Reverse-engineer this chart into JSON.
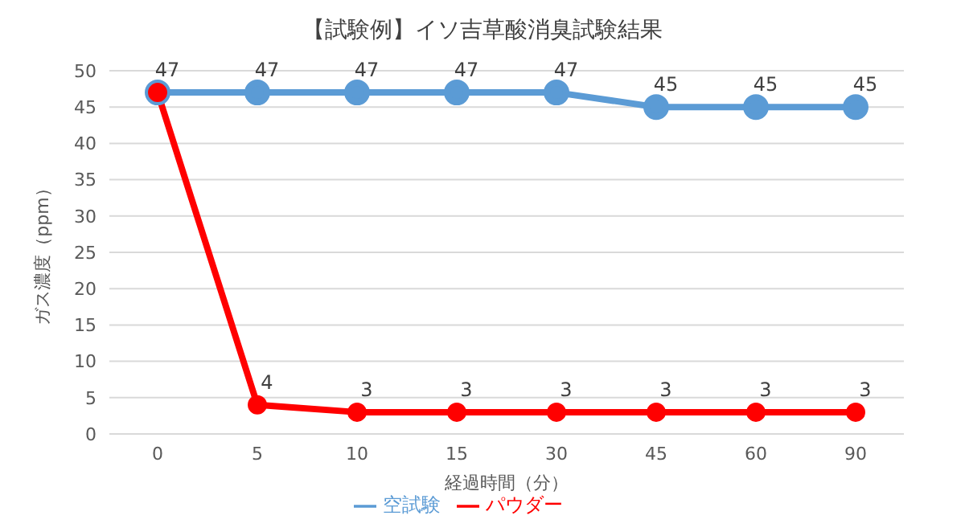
{
  "chart_data": {
    "type": "line",
    "title": "【試験例】イソ吉草酸消臭試験結果",
    "xlabel": "経過時間（分）",
    "ylabel": "ガス濃度（ppm）",
    "categories": [
      "0",
      "5",
      "10",
      "15",
      "30",
      "45",
      "60",
      "90"
    ],
    "series": [
      {
        "name": "空試験",
        "color": "#5b9bd5",
        "values": [
          47,
          47,
          47,
          47,
          47,
          45,
          45,
          45
        ]
      },
      {
        "name": "パウダー",
        "color": "#ff0000",
        "values": [
          47,
          4,
          3,
          3,
          3,
          3,
          3,
          3
        ],
        "value_labels": [
          null,
          "4",
          "3",
          "3",
          "3",
          "3",
          "3",
          "3"
        ]
      }
    ],
    "ylim": [
      0,
      50
    ],
    "yticks": [
      0,
      5,
      10,
      15,
      20,
      25,
      30,
      35,
      40,
      45,
      50
    ],
    "grid": "y",
    "legend": "bottom",
    "marker": "circle",
    "line_style": "solid",
    "data_labels": true
  }
}
